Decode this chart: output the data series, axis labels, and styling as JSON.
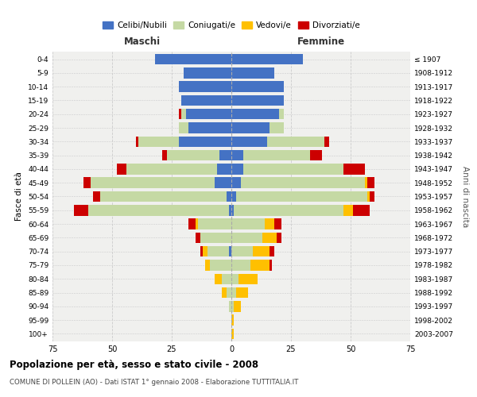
{
  "age_groups": [
    "0-4",
    "5-9",
    "10-14",
    "15-19",
    "20-24",
    "25-29",
    "30-34",
    "35-39",
    "40-44",
    "45-49",
    "50-54",
    "55-59",
    "60-64",
    "65-69",
    "70-74",
    "75-79",
    "80-84",
    "85-89",
    "90-94",
    "95-99",
    "100+"
  ],
  "birth_years": [
    "2003-2007",
    "1998-2002",
    "1993-1997",
    "1988-1992",
    "1983-1987",
    "1978-1982",
    "1973-1977",
    "1968-1972",
    "1963-1967",
    "1958-1962",
    "1953-1957",
    "1948-1952",
    "1943-1947",
    "1938-1942",
    "1933-1937",
    "1928-1932",
    "1923-1927",
    "1918-1922",
    "1913-1917",
    "1908-1912",
    "≤ 1907"
  ],
  "males": {
    "celibi": [
      32,
      20,
      22,
      21,
      19,
      18,
      22,
      5,
      6,
      7,
      2,
      1,
      0,
      0,
      1,
      0,
      0,
      0,
      0,
      0,
      0
    ],
    "coniugati": [
      0,
      0,
      0,
      0,
      2,
      4,
      17,
      22,
      38,
      52,
      53,
      59,
      14,
      13,
      9,
      9,
      4,
      2,
      1,
      0,
      0
    ],
    "vedovi": [
      0,
      0,
      0,
      0,
      0,
      0,
      0,
      0,
      0,
      0,
      0,
      0,
      1,
      0,
      2,
      2,
      3,
      2,
      0,
      0,
      0
    ],
    "divorziati": [
      0,
      0,
      0,
      0,
      1,
      0,
      1,
      2,
      4,
      3,
      3,
      6,
      3,
      2,
      1,
      0,
      0,
      0,
      0,
      0,
      0
    ]
  },
  "females": {
    "nubili": [
      30,
      18,
      22,
      22,
      20,
      16,
      15,
      5,
      5,
      4,
      2,
      1,
      0,
      0,
      0,
      0,
      0,
      0,
      0,
      0,
      0
    ],
    "coniugate": [
      0,
      0,
      0,
      0,
      2,
      6,
      24,
      28,
      42,
      52,
      55,
      46,
      14,
      13,
      9,
      8,
      3,
      2,
      1,
      0,
      0
    ],
    "vedove": [
      0,
      0,
      0,
      0,
      0,
      0,
      0,
      0,
      0,
      1,
      1,
      4,
      4,
      6,
      7,
      8,
      8,
      5,
      3,
      1,
      1
    ],
    "divorziate": [
      0,
      0,
      0,
      0,
      0,
      0,
      2,
      5,
      9,
      3,
      2,
      7,
      3,
      2,
      2,
      1,
      0,
      0,
      0,
      0,
      0
    ]
  },
  "colors": {
    "celibi": "#4472c4",
    "coniugati": "#c5d9a4",
    "vedovi": "#ffc000",
    "divorziati": "#cc0000"
  },
  "title": "Popolazione per età, sesso e stato civile - 2008",
  "subtitle": "COMUNE DI POLLEIN (AO) - Dati ISTAT 1° gennaio 2008 - Elaborazione TUTTITALIA.IT",
  "xlim": 75,
  "xlabel_left": "Maschi",
  "xlabel_right": "Femmine",
  "ylabel_left": "Fasce di età",
  "ylabel_right": "Anni di nascita",
  "bg_color": "#ffffff",
  "grid_color": "#cccccc",
  "legend_labels": [
    "Celibi/Nubili",
    "Coniugati/e",
    "Vedovi/e",
    "Divorziati/e"
  ]
}
